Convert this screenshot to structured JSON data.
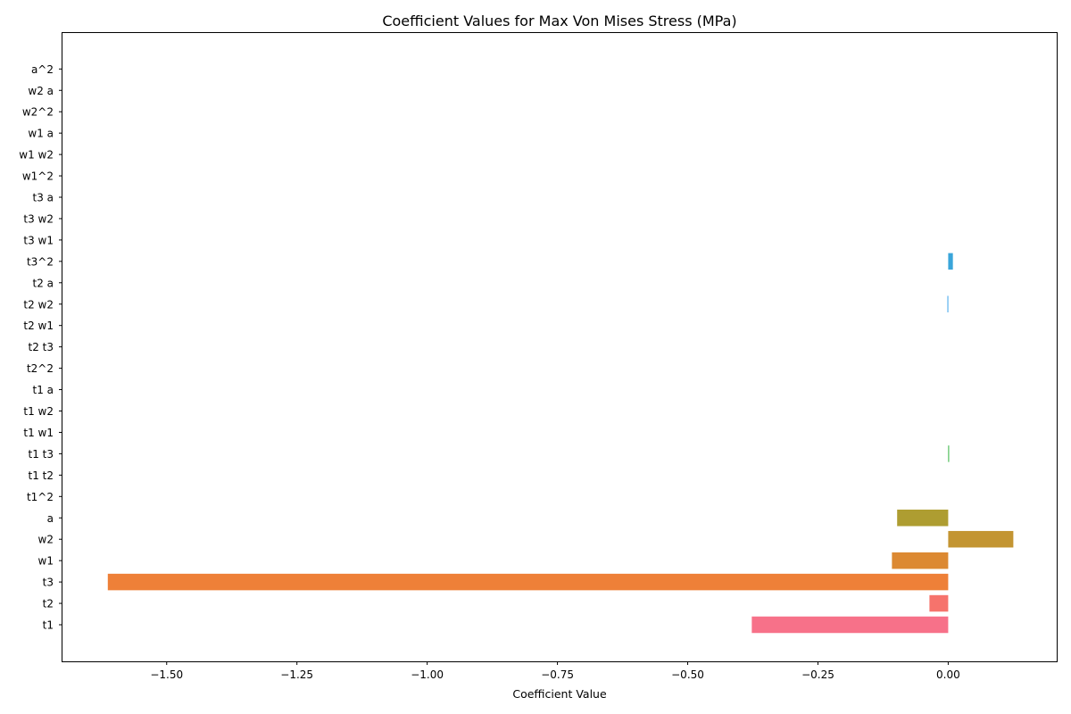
{
  "chart_data": {
    "type": "bar",
    "orientation": "horizontal",
    "title": "Coefficient Values for Max Von Mises Stress (MPa)",
    "xlabel": "Coefficient Value",
    "ylabel": "",
    "xlim": [
      -1.7,
      0.21
    ],
    "xticks": [
      -1.5,
      -1.25,
      -1.0,
      -0.75,
      -0.5,
      -0.25,
      0.0
    ],
    "xtick_labels": [
      "−1.50",
      "−1.25",
      "−1.00",
      "−0.75",
      "−0.50",
      "−0.25",
      "0.00"
    ],
    "grid": false,
    "categories": [
      "t1",
      "t2",
      "t3",
      "w1",
      "w2",
      "a",
      "t1^2",
      "t1 t2",
      "t1 t3",
      "t1 w1",
      "t1 w2",
      "t1 a",
      "t2^2",
      "t2 t3",
      "t2 w1",
      "t2 w2",
      "t2 a",
      "t3^2",
      "t3 w1",
      "t3 w2",
      "t3 a",
      "w1^2",
      "w1 w2",
      "w1 a",
      "w2^2",
      "w2 a",
      "a^2"
    ],
    "values": [
      -0.377,
      -0.036,
      -1.613,
      -0.108,
      0.125,
      -0.098,
      0.0,
      0.0,
      0.0015,
      0.0,
      0.0,
      0.0,
      0.0,
      0.0,
      0.0,
      -0.0015,
      0.0,
      0.009,
      0.0,
      0.0,
      0.0,
      0.0,
      0.0,
      0.0,
      0.0,
      0.0,
      0.0
    ],
    "colors": [
      "#f77189",
      "#f6736c",
      "#ee8038",
      "#dc8932",
      "#c39532",
      "#ae9d31",
      "#97a431",
      "#77ab31",
      "#31b33e",
      "#33b07a",
      "#35ae93",
      "#36ada4",
      "#37abb4",
      "#38aac3",
      "#3aa7d2",
      "#3ba3ec",
      "#40a3e6",
      "#3aa5da",
      "#8e8bf4",
      "#b887f4",
      "#d67ef3",
      "#f160e6",
      "#f567c8",
      "#f66eaf",
      "#f76f9c",
      "#f7718f",
      "#f77189"
    ]
  }
}
